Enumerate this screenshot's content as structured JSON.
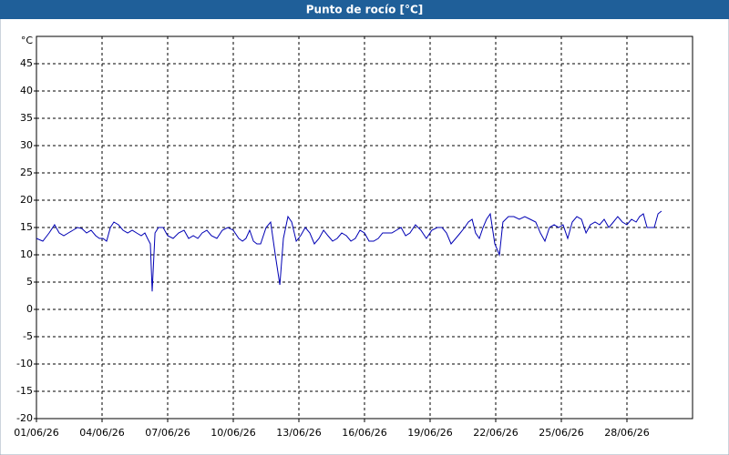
{
  "chart_data": {
    "type": "line",
    "title": "Punto de rocío [°C]",
    "y_label": "°C",
    "grid": true,
    "xlim": [
      1,
      31
    ],
    "ylim": [
      -20,
      50
    ],
    "yticks": [
      -20,
      -15,
      -10,
      -5,
      0,
      5,
      10,
      15,
      20,
      25,
      30,
      35,
      40,
      45
    ],
    "xticks": [
      {
        "value": 1,
        "label": "01/06/26"
      },
      {
        "value": 4,
        "label": "04/06/26"
      },
      {
        "value": 7,
        "label": "07/06/26"
      },
      {
        "value": 10,
        "label": "10/06/26"
      },
      {
        "value": 13,
        "label": "13/06/26"
      },
      {
        "value": 16,
        "label": "16/06/26"
      },
      {
        "value": 19,
        "label": "19/06/26"
      },
      {
        "value": 22,
        "label": "22/06/26"
      },
      {
        "value": 25,
        "label": "25/06/26"
      },
      {
        "value": 28,
        "label": "28/06/26"
      }
    ],
    "x": [
      1.0,
      1.29,
      1.58,
      1.83,
      2.04,
      2.25,
      2.46,
      2.67,
      2.88,
      3.08,
      3.29,
      3.5,
      3.71,
      3.88,
      4.04,
      4.21,
      4.38,
      4.54,
      4.75,
      4.96,
      5.17,
      5.38,
      5.58,
      5.79,
      5.96,
      6.08,
      6.21,
      6.29,
      6.42,
      6.58,
      6.79,
      7.0,
      7.25,
      7.5,
      7.75,
      7.96,
      8.17,
      8.38,
      8.58,
      8.79,
      9.0,
      9.25,
      9.5,
      9.75,
      10.0,
      10.25,
      10.42,
      10.58,
      10.75,
      10.92,
      11.08,
      11.25,
      11.5,
      11.71,
      11.92,
      12.13,
      12.29,
      12.5,
      12.67,
      12.88,
      13.08,
      13.29,
      13.5,
      13.71,
      13.92,
      14.13,
      14.33,
      14.54,
      14.75,
      14.96,
      15.17,
      15.38,
      15.58,
      15.79,
      16.0,
      16.21,
      16.42,
      16.63,
      16.83,
      17.04,
      17.25,
      17.46,
      17.67,
      17.88,
      18.08,
      18.33,
      18.58,
      18.83,
      19.08,
      19.33,
      19.54,
      19.75,
      19.96,
      20.17,
      20.38,
      20.58,
      20.75,
      20.92,
      21.08,
      21.25,
      21.42,
      21.58,
      21.75,
      21.96,
      22.17,
      22.33,
      22.58,
      22.83,
      23.08,
      23.33,
      23.58,
      23.83,
      24.04,
      24.25,
      24.46,
      24.67,
      24.88,
      25.08,
      25.29,
      25.5,
      25.71,
      25.92,
      26.13,
      26.33,
      26.54,
      26.75,
      26.96,
      27.17,
      27.38,
      27.58,
      27.79,
      28.0,
      28.21,
      28.42,
      28.58,
      28.75,
      28.92,
      29.08,
      29.25,
      29.42,
      29.58
    ],
    "series": [
      {
        "name": "Punto de rocío",
        "color": "#0000b4",
        "values": [
          13,
          12.5,
          14,
          15.5,
          14,
          13.5,
          14,
          14.5,
          15,
          14.8,
          14,
          14.5,
          13.5,
          13,
          13,
          12.5,
          15,
          16,
          15.5,
          14.5,
          14,
          14.5,
          14,
          13.5,
          14,
          13,
          12,
          3.3,
          14,
          15,
          15,
          13.5,
          13,
          14,
          14.5,
          13,
          13.5,
          13,
          14,
          14.5,
          13.5,
          13,
          14.5,
          15,
          14.5,
          13,
          12.5,
          13,
          14.5,
          12.5,
          12,
          12,
          15,
          16,
          10,
          4.5,
          13,
          17,
          16,
          12.5,
          13.5,
          15,
          14,
          12,
          13,
          14.5,
          13.5,
          12.5,
          13,
          14,
          13.5,
          12.5,
          13,
          14.5,
          14,
          12.5,
          12.5,
          13,
          14,
          14,
          14,
          14.5,
          15,
          13.5,
          14,
          15.5,
          14.5,
          13,
          14.5,
          15,
          15,
          14,
          12,
          13,
          14,
          15,
          16,
          16.5,
          14,
          13,
          15,
          16.5,
          17.5,
          12,
          10,
          16,
          17,
          17,
          16.5,
          17,
          16.5,
          16,
          14,
          12.5,
          15,
          15.5,
          15,
          15.5,
          13,
          16,
          17,
          16.5,
          14,
          15.5,
          16,
          15.5,
          16.5,
          15,
          16,
          17,
          16,
          15.5,
          16.5,
          16,
          17,
          17.5,
          15,
          15,
          15,
          17.5,
          18
        ]
      }
    ]
  }
}
